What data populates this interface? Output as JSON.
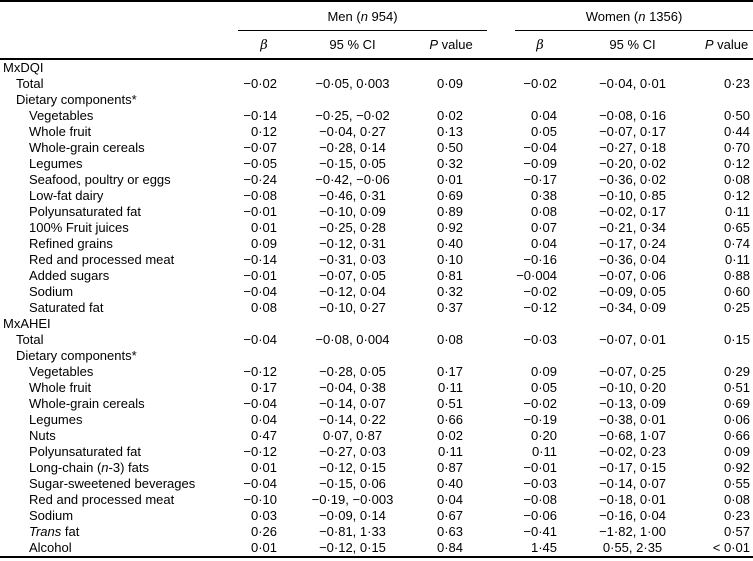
{
  "table": {
    "groups": [
      {
        "id": "men",
        "label": "Men (*n* 954)"
      },
      {
        "id": "women",
        "label": "Women (*n* 1356)"
      }
    ],
    "subheaders": [
      "*β*",
      "95 % CI",
      "*P* value"
    ],
    "rows": [
      {
        "label": "MxDQI",
        "indent": 0
      },
      {
        "label": "Total",
        "indent": 1,
        "men": [
          "−0·02",
          "−0·05, 0·003",
          "0·09"
        ],
        "women": [
          "−0·02",
          "−0·04, 0·01",
          "0·23"
        ]
      },
      {
        "label": "Dietary components*",
        "indent": 1
      },
      {
        "label": "Vegetables",
        "indent": 2,
        "men": [
          "−0·14",
          "−0·25, −0·02",
          "0·02"
        ],
        "women": [
          "0·04",
          "−0·08, 0·16",
          "0·50"
        ]
      },
      {
        "label": "Whole fruit",
        "indent": 2,
        "men": [
          "0·12",
          "−0·04, 0·27",
          "0·13"
        ],
        "women": [
          "0·05",
          "−0·07, 0·17",
          "0·44"
        ]
      },
      {
        "label": "Whole-grain cereals",
        "indent": 2,
        "men": [
          "−0·07",
          "−0·28, 0·14",
          "0·50"
        ],
        "women": [
          "−0·04",
          "−0·27, 0·18",
          "0·70"
        ]
      },
      {
        "label": "Legumes",
        "indent": 2,
        "men": [
          "−0·05",
          "−0·15, 0·05",
          "0·32"
        ],
        "women": [
          "−0·09",
          "−0·20, 0·02",
          "0·12"
        ]
      },
      {
        "label": "Seafood, poultry or eggs",
        "indent": 2,
        "men": [
          "−0·24",
          "−0·42, −0·06",
          "0·01"
        ],
        "women": [
          "−0·17",
          "−0·36, 0·02",
          "0·08"
        ]
      },
      {
        "label": "Low-fat dairy",
        "indent": 2,
        "men": [
          "−0·08",
          "−0·46, 0·31",
          "0·69"
        ],
        "women": [
          "0·38",
          "−0·10, 0·85",
          "0·12"
        ]
      },
      {
        "label": "Polyunsaturated fat",
        "indent": 2,
        "men": [
          "−0·01",
          "−0·10, 0·09",
          "0·89"
        ],
        "women": [
          "0·08",
          "−0·02, 0·17",
          "0·11"
        ]
      },
      {
        "label": "100% Fruit juices",
        "indent": 2,
        "men": [
          "0·01",
          "−0·25, 0·28",
          "0·92"
        ],
        "women": [
          "0·07",
          "−0·21, 0·34",
          "0·65"
        ]
      },
      {
        "label": "Refined grains",
        "indent": 2,
        "men": [
          "0·09",
          "−0·12, 0·31",
          "0·40"
        ],
        "women": [
          "0·04",
          "−0·17, 0·24",
          "0·74"
        ]
      },
      {
        "label": "Red and processed meat",
        "indent": 2,
        "men": [
          "−0·14",
          "−0·31, 0·03",
          "0·10"
        ],
        "women": [
          "−0·16",
          "−0·36, 0·04",
          "0·11"
        ]
      },
      {
        "label": "Added sugars",
        "indent": 2,
        "men": [
          "−0·01",
          "−0·07, 0·05",
          "0·81"
        ],
        "women": [
          "−0·004",
          "−0·07, 0·06",
          "0·88"
        ]
      },
      {
        "label": "Sodium",
        "indent": 2,
        "men": [
          "−0·04",
          "−0·12, 0·04",
          "0·32"
        ],
        "women": [
          "−0·02",
          "−0·09, 0·05",
          "0·60"
        ]
      },
      {
        "label": "Saturated fat",
        "indent": 2,
        "men": [
          "0·08",
          "−0·10, 0·27",
          "0·37"
        ],
        "women": [
          "−0·12",
          "−0·34, 0·09",
          "0·25"
        ]
      },
      {
        "label": "MxAHEI",
        "indent": 0
      },
      {
        "label": "Total",
        "indent": 1,
        "men": [
          "−0·04",
          "−0·08, 0·004",
          "0·08"
        ],
        "women": [
          "−0·03",
          "−0·07, 0·01",
          "0·15"
        ]
      },
      {
        "label": "Dietary components*",
        "indent": 1
      },
      {
        "label": "Vegetables",
        "indent": 2,
        "men": [
          "−0·12",
          "−0·28, 0·05",
          "0·17"
        ],
        "women": [
          "0·09",
          "−0·07, 0·25",
          "0·29"
        ]
      },
      {
        "label": "Whole fruit",
        "indent": 2,
        "men": [
          "0·17",
          "−0·04, 0·38",
          "0·11"
        ],
        "women": [
          "0·05",
          "−0·10, 0·20",
          "0·51"
        ]
      },
      {
        "label": "Whole-grain cereals",
        "indent": 2,
        "men": [
          "−0·04",
          "−0·14, 0·07",
          "0·51"
        ],
        "women": [
          "−0·02",
          "−0·13, 0·09",
          "0·69"
        ]
      },
      {
        "label": "Legumes",
        "indent": 2,
        "men": [
          "0·04",
          "−0·14, 0·22",
          "0·66"
        ],
        "women": [
          "−0·19",
          "−0·38, 0·01",
          "0·06"
        ]
      },
      {
        "label": "Nuts",
        "indent": 2,
        "men": [
          "0·47",
          "0·07, 0·87",
          "0·02"
        ],
        "women": [
          "0·20",
          "−0·68, 1·07",
          "0·66"
        ]
      },
      {
        "label": "Polyunsaturated fat",
        "indent": 2,
        "men": [
          "−0·12",
          "−0·27, 0·03",
          "0·11"
        ],
        "women": [
          "0·11",
          "−0·02, 0·23",
          "0·09"
        ]
      },
      {
        "label": "Long-chain (*n*-3) fats",
        "indent": 2,
        "men": [
          "0·01",
          "−0·12, 0·15",
          "0·87"
        ],
        "women": [
          "−0·01",
          "−0·17, 0·15",
          "0·92"
        ]
      },
      {
        "label": "Sugar-sweetened beverages",
        "indent": 2,
        "men": [
          "−0·04",
          "−0·15, 0·06",
          "0·40"
        ],
        "women": [
          "−0·03",
          "−0·14, 0·07",
          "0·55"
        ]
      },
      {
        "label": "Red and processed meat",
        "indent": 2,
        "men": [
          "−0·10",
          "−0·19, −0·003",
          "0·04"
        ],
        "women": [
          "−0·08",
          "−0·18, 0·01",
          "0·08"
        ]
      },
      {
        "label": "Sodium",
        "indent": 2,
        "men": [
          "0·03",
          "−0·09, 0·14",
          "0·67"
        ],
        "women": [
          "−0·06",
          "−0·16, 0·04",
          "0·23"
        ]
      },
      {
        "label": "*Trans* fat",
        "indent": 2,
        "men": [
          "0·26",
          "−0·81, 1·33",
          "0·63"
        ],
        "women": [
          "−0·41",
          "−1·82, 1·00",
          "0·57"
        ]
      },
      {
        "label": "Alcohol",
        "indent": 2,
        "men": [
          "0·01",
          "−0·12, 0·15",
          "0·84"
        ],
        "women": [
          "1·45",
          "0·55, 2·35",
          "< 0·01"
        ]
      }
    ]
  }
}
